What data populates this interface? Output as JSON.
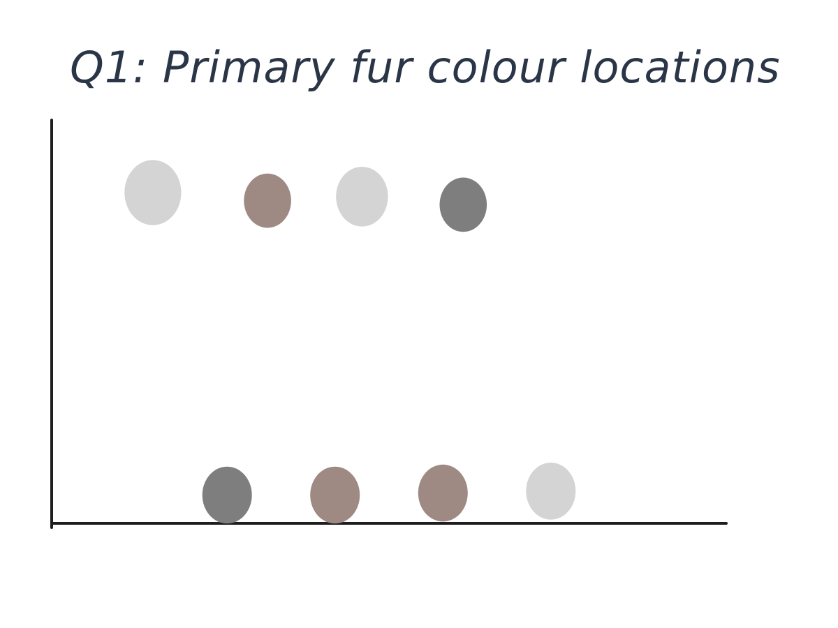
{
  "chart_data": {
    "type": "scatter",
    "title": "Q1: Primary fur colour locations",
    "xlabel": "",
    "ylabel": "",
    "xlim": [
      0,
      10
    ],
    "ylim": [
      0,
      10
    ],
    "grid": false,
    "colors": {
      "light_grey": "#d4d4d4",
      "brown": "#9e8a82",
      "dark_grey": "#7e7e7e",
      "axis": "#1e1e1e",
      "title": "#2a3647"
    },
    "points": [
      {
        "x": 1.5,
        "y": 8.2,
        "color": "#d4d4d4",
        "size": 1.2
      },
      {
        "x": 3.2,
        "y": 8.0,
        "color": "#9e8a82",
        "size": 1.0
      },
      {
        "x": 4.6,
        "y": 8.1,
        "color": "#d4d4d4",
        "size": 1.1
      },
      {
        "x": 6.1,
        "y": 7.9,
        "color": "#7e7e7e",
        "size": 1.0
      },
      {
        "x": 2.6,
        "y": 0.7,
        "color": "#7e7e7e",
        "size": 1.05
      },
      {
        "x": 4.2,
        "y": 0.7,
        "color": "#9e8a82",
        "size": 1.05
      },
      {
        "x": 5.8,
        "y": 0.75,
        "color": "#9e8a82",
        "size": 1.05
      },
      {
        "x": 7.4,
        "y": 0.8,
        "color": "#d4d4d4",
        "size": 1.05
      }
    ]
  }
}
